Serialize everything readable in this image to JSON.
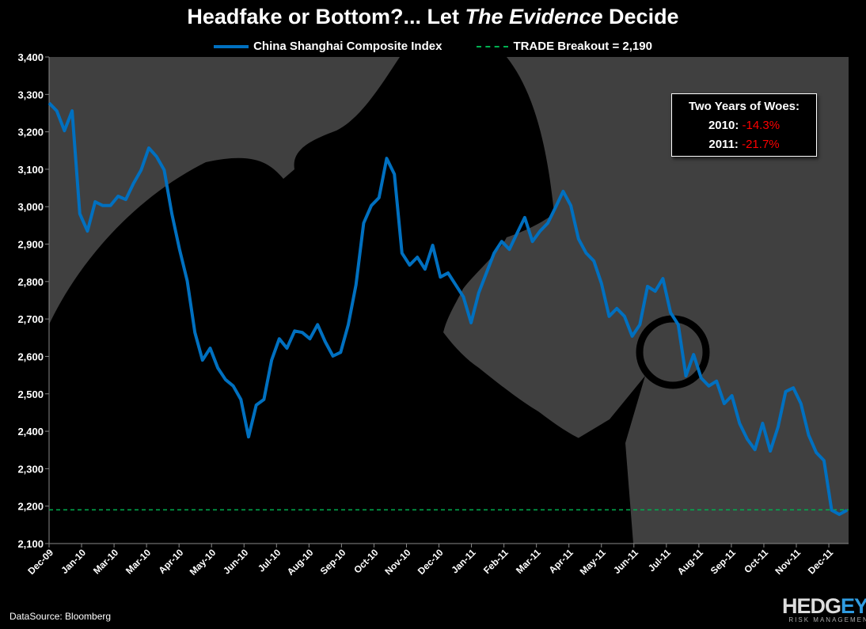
{
  "chart_data": {
    "type": "line",
    "title_parts": {
      "pre": "Headfake or Bottom?... Let ",
      "italic": "The Evidence",
      "post": " Decide"
    },
    "xlabel": "",
    "ylabel": "",
    "ylim": [
      2100,
      3400
    ],
    "y_ticks": [
      "2,100",
      "2,200",
      "2,300",
      "2,400",
      "2,500",
      "2,600",
      "2,700",
      "2,800",
      "2,900",
      "3,000",
      "3,100",
      "3,200",
      "3,300",
      "3,400"
    ],
    "y_tick_values": [
      2100,
      2200,
      2300,
      2400,
      2500,
      2600,
      2700,
      2800,
      2900,
      3000,
      3100,
      3200,
      3300,
      3400
    ],
    "x_ticks": [
      "Dec-09",
      "Jan-10",
      "Mar-10",
      "Mar-10",
      "Apr-10",
      "May-10",
      "Jun-10",
      "Jul-10",
      "Aug-10",
      "Sep-10",
      "Oct-10",
      "Nov-10",
      "Dec-10",
      "Jan-11",
      "Feb-11",
      "Mar-11",
      "Apr-11",
      "May-11",
      "Jun-11",
      "Jul-11",
      "Aug-11",
      "Sep-11",
      "Oct-11",
      "Nov-11",
      "Dec-11"
    ],
    "grid": false,
    "legend_position": "top",
    "series": [
      {
        "name": "China Shanghai Composite Index",
        "color": "#0070c0",
        "dates": [
          "2009-12-31",
          "2010-01-07",
          "2010-01-14",
          "2010-01-21",
          "2010-01-28",
          "2010-02-04",
          "2010-02-11",
          "2010-02-18",
          "2010-02-25",
          "2010-03-04",
          "2010-03-11",
          "2010-03-18",
          "2010-03-25",
          "2010-04-01",
          "2010-04-08",
          "2010-04-15",
          "2010-04-22",
          "2010-04-29",
          "2010-05-06",
          "2010-05-13",
          "2010-05-20",
          "2010-05-27",
          "2010-06-03",
          "2010-06-10",
          "2010-06-17",
          "2010-06-24",
          "2010-07-01",
          "2010-07-08",
          "2010-07-15",
          "2010-07-22",
          "2010-07-29",
          "2010-08-05",
          "2010-08-12",
          "2010-08-19",
          "2010-08-26",
          "2010-09-02",
          "2010-09-09",
          "2010-09-16",
          "2010-09-23",
          "2010-09-30",
          "2010-10-07",
          "2010-10-14",
          "2010-10-21",
          "2010-10-28",
          "2010-11-04",
          "2010-11-11",
          "2010-11-18",
          "2010-11-25",
          "2010-12-02",
          "2010-12-09",
          "2010-12-16",
          "2010-12-23",
          "2010-12-30",
          "2011-01-06",
          "2011-01-13",
          "2011-01-20",
          "2011-01-27",
          "2011-02-03",
          "2011-02-10",
          "2011-02-17",
          "2011-02-24",
          "2011-03-03",
          "2011-03-10",
          "2011-03-17",
          "2011-03-24",
          "2011-03-31",
          "2011-04-07",
          "2011-04-14",
          "2011-04-21",
          "2011-04-28",
          "2011-05-05",
          "2011-05-12",
          "2011-05-19",
          "2011-05-26",
          "2011-06-02",
          "2011-06-09",
          "2011-06-16",
          "2011-06-23",
          "2011-06-30",
          "2011-07-07",
          "2011-07-14",
          "2011-07-21",
          "2011-07-28",
          "2011-08-04",
          "2011-08-11",
          "2011-08-18",
          "2011-08-25",
          "2011-09-01",
          "2011-09-08",
          "2011-09-15",
          "2011-09-22",
          "2011-09-29",
          "2011-10-06",
          "2011-10-13",
          "2011-10-20",
          "2011-10-27",
          "2011-11-03",
          "2011-11-10",
          "2011-11-17",
          "2011-11-24",
          "2011-12-01",
          "2011-12-08",
          "2011-12-15",
          "2011-12-22",
          "2011-12-29"
        ],
        "values": [
          3277,
          3256,
          3203,
          3256,
          2981,
          2935,
          3013,
          3003,
          3003,
          3028,
          3019,
          3062,
          3098,
          3157,
          3134,
          3098,
          2981,
          2886,
          2802,
          2664,
          2590,
          2622,
          2569,
          2538,
          2521,
          2485,
          2385,
          2470,
          2485,
          2590,
          2647,
          2622,
          2668,
          2664,
          2647,
          2685,
          2639,
          2601,
          2611,
          2685,
          2791,
          2956,
          3003,
          3024,
          3129,
          3087,
          2876,
          2844,
          2865,
          2833,
          2897,
          2812,
          2823,
          2791,
          2759,
          2690,
          2770,
          2823,
          2876,
          2907,
          2886,
          2929,
          2971,
          2907,
          2935,
          2956,
          2998,
          3041,
          3003,
          2914,
          2876,
          2855,
          2795,
          2707,
          2728,
          2707,
          2654,
          2685,
          2787,
          2774,
          2808,
          2717,
          2685,
          2548,
          2605,
          2542,
          2521,
          2534,
          2474,
          2495,
          2421,
          2379,
          2351,
          2421,
          2347,
          2411,
          2506,
          2516,
          2474,
          2390,
          2343,
          2322,
          2189,
          2178,
          2189
        ]
      },
      {
        "name": "TRADE Breakout = 2,190",
        "color": "#00b050",
        "style": "dashed",
        "value": 2190
      }
    ]
  },
  "inset": {
    "title": "Two Years of Woes:",
    "rows": [
      {
        "label": "2010:",
        "value": "-14.3%"
      },
      {
        "label": "2011:",
        "value": "-21.7%"
      }
    ],
    "value_color": "#ff0000"
  },
  "footer": {
    "source": "DataSource: Bloomberg",
    "logo": {
      "part1": "HEDG",
      "part2": "EYE",
      "tagline": "RISK MANAGEMENT"
    }
  }
}
